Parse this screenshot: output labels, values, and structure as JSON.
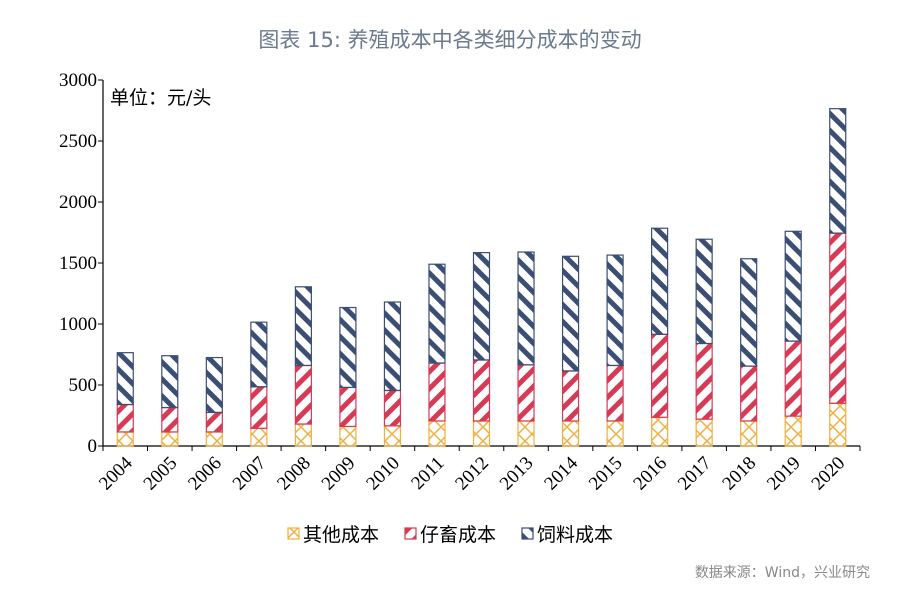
{
  "chart_data": {
    "type": "bar",
    "stacked": true,
    "title": "图表 15: 养殖成本中各类细分成本的变动",
    "unit_label": "单位：元/头",
    "xlabel": "",
    "ylabel": "",
    "ylim": [
      0,
      3000
    ],
    "yticks": [
      0,
      500,
      1000,
      1500,
      2000,
      2500,
      3000
    ],
    "grid": false,
    "legend": "bottom",
    "categories": [
      "2004",
      "2005",
      "2006",
      "2007",
      "2008",
      "2009",
      "2010",
      "2011",
      "2012",
      "2013",
      "2014",
      "2015",
      "2016",
      "2017",
      "2018",
      "2019",
      "2020"
    ],
    "series": [
      {
        "name": "其他成本",
        "color": "#f0b040",
        "values": [
          115,
          115,
          115,
          145,
          180,
          160,
          165,
          205,
          205,
          205,
          205,
          205,
          235,
          220,
          205,
          245,
          350
        ]
      },
      {
        "name": "仔畜成本",
        "color": "#d63a55",
        "values": [
          225,
          200,
          160,
          340,
          480,
          320,
          290,
          475,
          500,
          460,
          410,
          455,
          680,
          620,
          450,
          615,
          1395
        ]
      },
      {
        "name": "饲料成本",
        "color": "#3b4e74",
        "values": [
          425,
          425,
          450,
          530,
          645,
          655,
          725,
          810,
          880,
          925,
          940,
          905,
          870,
          855,
          880,
          900,
          1020
        ]
      }
    ]
  },
  "source": "数据来源：Wind，兴业研究"
}
